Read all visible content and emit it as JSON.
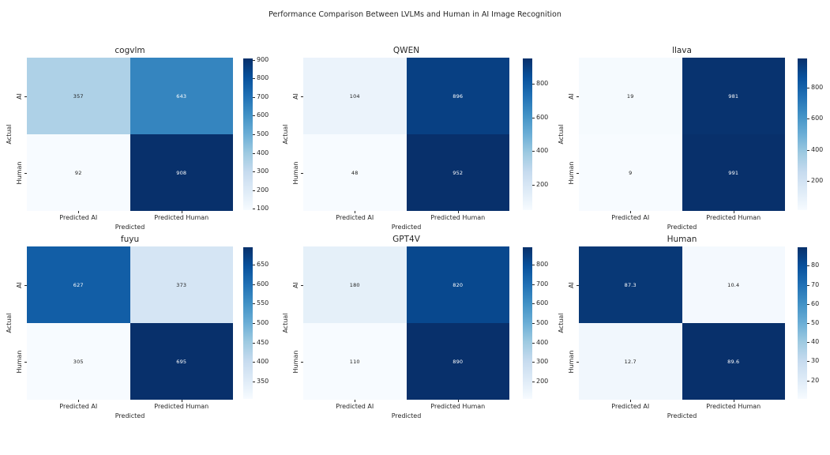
{
  "figure": {
    "title": "Performance Comparison Between LVLMs and Human in AI Image Recognition",
    "background": "#ffffff",
    "text_color": "#262626"
  },
  "chart_data": {
    "type": "heatmap",
    "subtype": "confusion-matrix-grid",
    "grid": "2 rows x 3 columns",
    "colormap": "Blues",
    "colormap_low": "#f7fbff",
    "colormap_high": "#08306b",
    "x_categories": [
      "Predicted AI",
      "Predicted Human"
    ],
    "y_categories": [
      "AI",
      "Human"
    ],
    "xlabel": "Predicted",
    "ylabel": "Actual",
    "panels": [
      {
        "title": "cogvlm",
        "matrix": [
          [
            "357",
            "643"
          ],
          [
            "92",
            "908"
          ]
        ],
        "cell_colors": [
          [
            "#aed1e7",
            "#3585bf"
          ],
          [
            "#f7fbff",
            "#08306b"
          ]
        ],
        "text_colors": [
          [
            "#1a1a1a",
            "#ffffff"
          ],
          [
            "#1a1a1a",
            "#ffffff"
          ]
        ],
        "colorbar": {
          "vmin": 92,
          "vmax": 908,
          "ticks": [
            900,
            800,
            700,
            600,
            500,
            400,
            300,
            200,
            100
          ]
        }
      },
      {
        "title": "QWEN",
        "matrix": [
          [
            "104",
            "896"
          ],
          [
            "48",
            "952"
          ]
        ],
        "cell_colors": [
          [
            "#ebf3fb",
            "#084083"
          ],
          [
            "#f7fbff",
            "#08306b"
          ]
        ],
        "text_colors": [
          [
            "#1a1a1a",
            "#ffffff"
          ],
          [
            "#1a1a1a",
            "#ffffff"
          ]
        ],
        "colorbar": {
          "vmin": 48,
          "vmax": 952,
          "ticks": [
            800,
            600,
            400,
            200
          ]
        }
      },
      {
        "title": "llava",
        "matrix": [
          [
            "19",
            "981"
          ],
          [
            "9",
            "991"
          ]
        ],
        "cell_colors": [
          [
            "#f5fafe",
            "#08336f"
          ],
          [
            "#f7fbff",
            "#08306b"
          ]
        ],
        "text_colors": [
          [
            "#1a1a1a",
            "#ffffff"
          ],
          [
            "#1a1a1a",
            "#ffffff"
          ]
        ],
        "colorbar": {
          "vmin": 9,
          "vmax": 991,
          "ticks": [
            800,
            600,
            400,
            200
          ]
        }
      },
      {
        "title": "fuyu",
        "matrix": [
          [
            "627",
            "373"
          ],
          [
            "305",
            "695"
          ]
        ],
        "cell_colors": [
          [
            "#125ea6",
            "#d5e5f4"
          ],
          [
            "#f7fbff",
            "#08306b"
          ]
        ],
        "text_colors": [
          [
            "#ffffff",
            "#1a1a1a"
          ],
          [
            "#1a1a1a",
            "#ffffff"
          ]
        ],
        "colorbar": {
          "vmin": 305,
          "vmax": 695,
          "ticks": [
            650,
            600,
            550,
            500,
            450,
            400,
            350
          ]
        }
      },
      {
        "title": "GPT4V",
        "matrix": [
          [
            "180",
            "820"
          ],
          [
            "110",
            "890"
          ]
        ],
        "cell_colors": [
          [
            "#e5f0f9",
            "#08488e"
          ],
          [
            "#f7fbff",
            "#08306b"
          ]
        ],
        "text_colors": [
          [
            "#1a1a1a",
            "#ffffff"
          ],
          [
            "#1a1a1a",
            "#ffffff"
          ]
        ],
        "colorbar": {
          "vmin": 110,
          "vmax": 890,
          "ticks": [
            800,
            700,
            600,
            500,
            400,
            300,
            200
          ]
        }
      },
      {
        "title": "Human",
        "matrix": [
          [
            "87.3",
            "10.4"
          ],
          [
            "12.7",
            "89.6"
          ]
        ],
        "cell_colors": [
          [
            "#083876",
            "#f4f9fe"
          ],
          [
            "#f1f7fd",
            "#08306b"
          ]
        ],
        "text_colors": [
          [
            "#ffffff",
            "#1a1a1a"
          ],
          [
            "#1a1a1a",
            "#ffffff"
          ]
        ],
        "colorbar": {
          "vmin": 10.4,
          "vmax": 89.6,
          "ticks": [
            80,
            70,
            60,
            50,
            40,
            30,
            20
          ]
        }
      }
    ]
  }
}
